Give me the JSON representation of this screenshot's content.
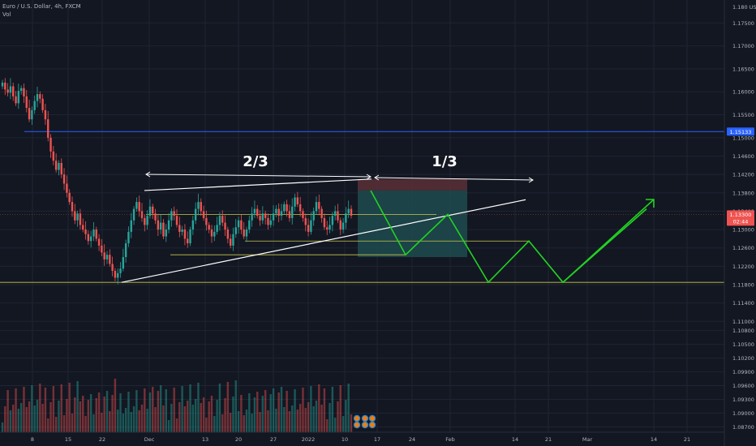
{
  "header": {
    "symbol_line": "Euro / U.S. Dollar, 4h, FXCM",
    "vol_label": "Vol"
  },
  "colors": {
    "background": "#131722",
    "grid": "#1f2433",
    "up": "#26a69a",
    "down": "#ef5350",
    "blue_line": "#2962ff",
    "level_line": "#c8c84a",
    "projection": "#22d322",
    "annotation": "#ffffff",
    "stop_zone": "#5b2f36",
    "target_zone": "#1e4b4d"
  },
  "chart_data": {
    "type": "candlestick",
    "symbol": "Euro / U.S. Dollar",
    "timeframe": "4h",
    "source": "FXCM",
    "y_axis": {
      "currency_unit": "USD",
      "unit_marker": "D",
      "ylim": [
        1.0855,
        1.18
      ],
      "ticks": [
        "1.17500",
        "1.17000",
        "1.16500",
        "1.16000",
        "1.15500",
        "1.15000",
        "1.14600",
        "1.14200",
        "1.13800",
        "1.13400",
        "1.13000",
        "1.12600",
        "1.12200",
        "1.11800",
        "1.11400",
        "1.11000",
        "1.10800",
        "1.10500",
        "1.10200",
        "1.09900",
        "1.09600",
        "1.09300",
        "1.09000",
        "1.08700"
      ]
    },
    "x_axis": {
      "ticks": [
        "8",
        "15",
        "22",
        "Dec",
        "13",
        "20",
        "27",
        "2022",
        "10",
        "17",
        "24",
        "Feb",
        "14",
        "21",
        "Mar",
        "14",
        "21"
      ]
    },
    "price_labels": {
      "blue_level": "1.15133",
      "current_price": "1.13300",
      "countdown": "02:44"
    },
    "annotations": {
      "left_span_label": "2/3",
      "right_span_label": "1/3"
    },
    "levels": {
      "blue_horizontal": 1.15133,
      "range_top_dashed": 1.1333,
      "support_1": 1.1245,
      "support_2": 1.1275,
      "bottom_support": 1.1185
    },
    "triangle": {
      "upper_trendline": [
        1.1385,
        1.141
      ],
      "lower_trendline": [
        1.1185,
        1.1365
      ]
    },
    "projection_path": [
      1.1385,
      1.1245,
      1.1333,
      1.1185,
      1.1275,
      1.1185,
      1.1345
    ],
    "closes": [
      1.162,
      1.1605,
      1.1598,
      1.1612,
      1.159,
      1.1575,
      1.1602,
      1.1608,
      1.159,
      1.1565,
      1.154,
      1.156,
      1.158,
      1.1595,
      1.1585,
      1.156,
      1.154,
      1.15,
      1.147,
      1.145,
      1.143,
      1.1445,
      1.142,
      1.14,
      1.138,
      1.136,
      1.134,
      1.132,
      1.1335,
      1.131,
      1.13,
      1.129,
      1.1275,
      1.1285,
      1.13,
      1.128,
      1.1265,
      1.125,
      1.1235,
      1.1245,
      1.1225,
      1.121,
      1.1195,
      1.1205,
      1.1215,
      1.124,
      1.127,
      1.1295,
      1.132,
      1.1345,
      1.136,
      1.134,
      1.1325,
      1.131,
      1.133,
      1.135,
      1.1335,
      1.132,
      1.13,
      1.1315,
      1.1285,
      1.13,
      1.132,
      1.134,
      1.133,
      1.131,
      1.1295,
      1.13,
      1.128,
      1.127,
      1.13,
      1.132,
      1.1345,
      1.136,
      1.134,
      1.1325,
      1.131,
      1.13,
      1.1285,
      1.1295,
      1.131,
      1.133,
      1.1315,
      1.13,
      1.128,
      1.1265,
      1.129,
      1.1305,
      1.132,
      1.13,
      1.1285,
      1.13,
      1.132,
      1.1335,
      1.1345,
      1.133,
      1.132,
      1.1335,
      1.1325,
      1.131,
      1.132,
      1.1335,
      1.1345,
      1.133,
      1.134,
      1.1355,
      1.134,
      1.1325,
      1.135,
      1.137,
      1.1355,
      1.134,
      1.1325,
      1.131,
      1.1295,
      1.132,
      1.134,
      1.136,
      1.1345,
      1.1325,
      1.1305,
      1.13,
      1.131,
      1.133,
      1.134,
      1.132,
      1.13,
      1.1315,
      1.1335,
      1.1345,
      1.133
    ]
  }
}
